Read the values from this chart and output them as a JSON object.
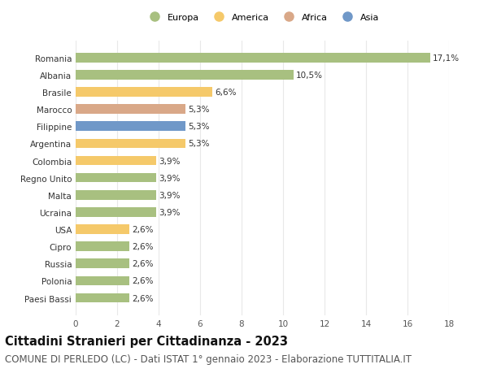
{
  "categories": [
    "Paesi Bassi",
    "Polonia",
    "Russia",
    "Cipro",
    "USA",
    "Ucraina",
    "Malta",
    "Regno Unito",
    "Colombia",
    "Argentina",
    "Filippine",
    "Marocco",
    "Brasile",
    "Albania",
    "Romania"
  ],
  "values": [
    2.6,
    2.6,
    2.6,
    2.6,
    2.6,
    3.9,
    3.9,
    3.9,
    3.9,
    5.3,
    5.3,
    5.3,
    6.6,
    10.5,
    17.1
  ],
  "labels": [
    "2,6%",
    "2,6%",
    "2,6%",
    "2,6%",
    "2,6%",
    "3,9%",
    "3,9%",
    "3,9%",
    "3,9%",
    "5,3%",
    "5,3%",
    "5,3%",
    "6,6%",
    "10,5%",
    "17,1%"
  ],
  "colors": [
    "#a8c080",
    "#a8c080",
    "#a8c080",
    "#a8c080",
    "#f5c96a",
    "#a8c080",
    "#a8c080",
    "#a8c080",
    "#f5c96a",
    "#f5c96a",
    "#7098c8",
    "#d9a888",
    "#f5c96a",
    "#a8c080",
    "#a8c080"
  ],
  "legend": [
    {
      "label": "Europa",
      "color": "#a8c080"
    },
    {
      "label": "America",
      "color": "#f5c96a"
    },
    {
      "label": "Africa",
      "color": "#d9a888"
    },
    {
      "label": "Asia",
      "color": "#7098c8"
    }
  ],
  "xlim": [
    0,
    18
  ],
  "xticks": [
    0,
    2,
    4,
    6,
    8,
    10,
    12,
    14,
    16,
    18
  ],
  "title": "Cittadini Stranieri per Cittadinanza - 2023",
  "subtitle": "COMUNE DI PERLEDO (LC) - Dati ISTAT 1° gennaio 2023 - Elaborazione TUTTITALIA.IT",
  "title_fontsize": 10.5,
  "subtitle_fontsize": 8.5,
  "label_fontsize": 7.5,
  "tick_fontsize": 7.5,
  "bar_height": 0.55,
  "grid_color": "#e8e8e8",
  "bg_color": "#ffffff"
}
